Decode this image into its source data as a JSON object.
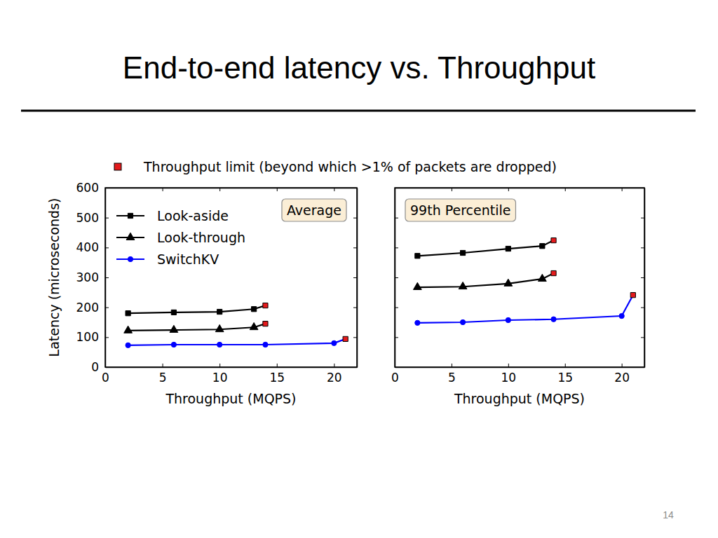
{
  "slide": {
    "title": "End-to-end latency vs. Throughput",
    "legend_note": "Throughput limit (beyond which >1% of packets are dropped)",
    "page": 14
  },
  "chart_data": [
    {
      "type": "line",
      "title": "Average",
      "x_label": "Throughput (MQPS)",
      "y_label": "Latency (microseconds)",
      "xlim": [
        0,
        22
      ],
      "xticks": [
        0,
        5,
        10,
        15,
        20
      ],
      "ylim": [
        0,
        600
      ],
      "yticks": [
        0,
        100,
        200,
        300,
        400,
        500,
        600
      ],
      "legend": "upper left",
      "series": [
        {
          "name": "Look-aside",
          "color": "#000000",
          "marker": "square",
          "line_style": "solid",
          "x": [
            2,
            6,
            10,
            13,
            14
          ],
          "values": [
            180,
            183,
            185,
            194,
            206
          ],
          "colors": [
            "#000000",
            "#000000",
            "#000000",
            "#000000",
            "#e31a1c"
          ]
        },
        {
          "name": "Look-through",
          "color": "#000000",
          "marker": "triangle",
          "line_style": "solid",
          "x": [
            2,
            6,
            10,
            13,
            14
          ],
          "values": [
            122,
            124,
            126,
            133,
            145
          ],
          "colors": [
            "#000000",
            "#000000",
            "#000000",
            "#000000",
            "#e31a1c"
          ]
        },
        {
          "name": "SwitchKV",
          "color": "#0000ff",
          "marker": "circle",
          "line_style": "solid",
          "x": [
            2,
            6,
            10,
            14,
            20,
            21
          ],
          "values": [
            73,
            75,
            75,
            75,
            80,
            94
          ],
          "colors": [
            "#0000ff",
            "#0000ff",
            "#0000ff",
            "#0000ff",
            "#0000ff",
            "#e31a1c"
          ]
        }
      ]
    },
    {
      "type": "line",
      "title": "99th Percentile",
      "x_label": "Throughput (MQPS)",
      "xlim": [
        0,
        22
      ],
      "xticks": [
        0,
        5,
        10,
        15,
        20
      ],
      "ylim": [
        0,
        600
      ],
      "yticks": [
        0,
        100,
        200,
        300,
        400,
        500,
        600
      ],
      "tick_labels": "x",
      "series": [
        {
          "color": "#000000",
          "marker": "square",
          "line_style": "solid",
          "x": [
            2,
            6,
            10,
            13,
            14
          ],
          "values": [
            372,
            382,
            396,
            405,
            424
          ],
          "colors": [
            "#000000",
            "#000000",
            "#000000",
            "#000000",
            "#e31a1c"
          ]
        },
        {
          "color": "#000000",
          "marker": "triangle",
          "line_style": "solid",
          "x": [
            2,
            6,
            10,
            13,
            14
          ],
          "values": [
            267,
            269,
            279,
            295,
            314
          ],
          "colors": [
            "#000000",
            "#000000",
            "#000000",
            "#000000",
            "#e31a1c"
          ]
        },
        {
          "color": "#0000ff",
          "marker": "circle",
          "line_style": "solid",
          "x": [
            2,
            6,
            10,
            14,
            20,
            21
          ],
          "values": [
            148,
            150,
            157,
            160,
            171,
            241
          ],
          "colors": [
            "#0000ff",
            "#0000ff",
            "#0000ff",
            "#0000ff",
            "#0000ff",
            "#e31a1c"
          ]
        }
      ]
    }
  ]
}
